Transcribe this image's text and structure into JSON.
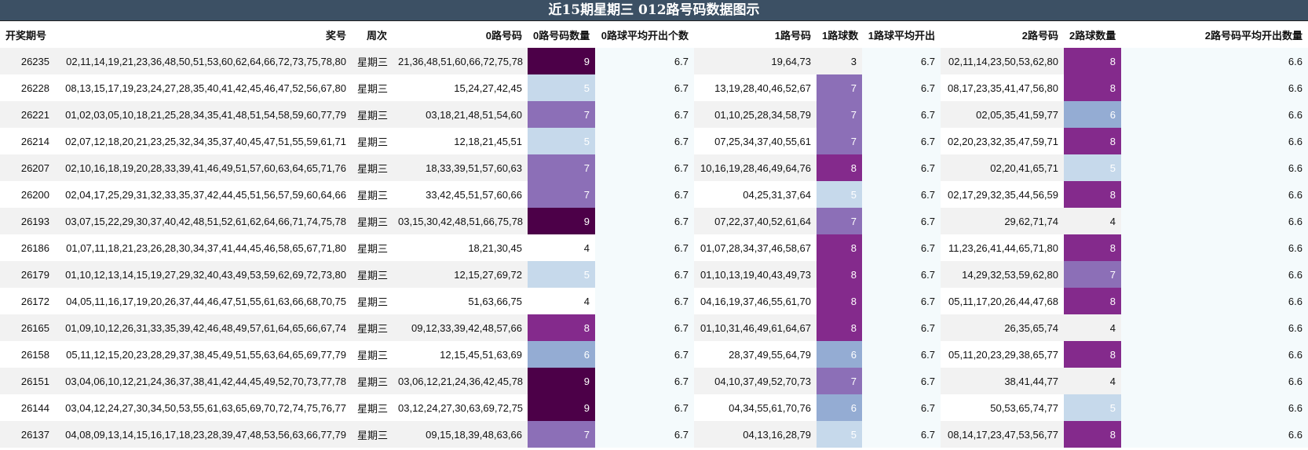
{
  "title": "近15期星期三 012路号码数据图示",
  "headers": [
    "开奖期号",
    "奖号",
    "周次",
    "0路号码",
    "0路号码数量",
    "0路球平均开出个数",
    "1路号码",
    "1路球数",
    "1路球平均开出",
    "2路号码",
    "2路球数量",
    "2路号码平均开出数量"
  ],
  "count_colors": {
    "3": "#ffffff",
    "4": "#ffffff",
    "5": "#c6d9eb",
    "6": "#94acd3",
    "7": "#8c6fb7",
    "8": "#842a8c",
    "9": "#4c0048"
  },
  "rows": [
    {
      "period": "26235",
      "numbers": "02,11,14,19,21,23,36,48,50,51,53,60,62,64,66,72,73,75,78,80",
      "week": "星期三",
      "r0": "21,36,48,51,60,66,72,75,78",
      "r0_count": "9",
      "r0_avg": "6.7",
      "r1": "19,64,73",
      "r1_count": "3",
      "r1_avg": "6.7",
      "r2": "02,11,14,23,50,53,62,80",
      "r2_count": "8",
      "r2_avg": "6.6"
    },
    {
      "period": "26228",
      "numbers": "08,13,15,17,19,23,24,27,28,35,40,41,42,45,46,47,52,56,67,80",
      "week": "星期三",
      "r0": "15,24,27,42,45",
      "r0_count": "5",
      "r0_avg": "6.7",
      "r1": "13,19,28,40,46,52,67",
      "r1_count": "7",
      "r1_avg": "6.7",
      "r2": "08,17,23,35,41,47,56,80",
      "r2_count": "8",
      "r2_avg": "6.6"
    },
    {
      "period": "26221",
      "numbers": "01,02,03,05,10,18,21,25,28,34,35,41,48,51,54,58,59,60,77,79",
      "week": "星期三",
      "r0": "03,18,21,48,51,54,60",
      "r0_count": "7",
      "r0_avg": "6.7",
      "r1": "01,10,25,28,34,58,79",
      "r1_count": "7",
      "r1_avg": "6.7",
      "r2": "02,05,35,41,59,77",
      "r2_count": "6",
      "r2_avg": "6.6"
    },
    {
      "period": "26214",
      "numbers": "02,07,12,18,20,21,23,25,32,34,35,37,40,45,47,51,55,59,61,71",
      "week": "星期三",
      "r0": "12,18,21,45,51",
      "r0_count": "5",
      "r0_avg": "6.7",
      "r1": "07,25,34,37,40,55,61",
      "r1_count": "7",
      "r1_avg": "6.7",
      "r2": "02,20,23,32,35,47,59,71",
      "r2_count": "8",
      "r2_avg": "6.6"
    },
    {
      "period": "26207",
      "numbers": "02,10,16,18,19,20,28,33,39,41,46,49,51,57,60,63,64,65,71,76",
      "week": "星期三",
      "r0": "18,33,39,51,57,60,63",
      "r0_count": "7",
      "r0_avg": "6.7",
      "r1": "10,16,19,28,46,49,64,76",
      "r1_count": "8",
      "r1_avg": "6.7",
      "r2": "02,20,41,65,71",
      "r2_count": "5",
      "r2_avg": "6.6"
    },
    {
      "period": "26200",
      "numbers": "02,04,17,25,29,31,32,33,35,37,42,44,45,51,56,57,59,60,64,66",
      "week": "星期三",
      "r0": "33,42,45,51,57,60,66",
      "r0_count": "7",
      "r0_avg": "6.7",
      "r1": "04,25,31,37,64",
      "r1_count": "5",
      "r1_avg": "6.7",
      "r2": "02,17,29,32,35,44,56,59",
      "r2_count": "8",
      "r2_avg": "6.6"
    },
    {
      "period": "26193",
      "numbers": "03,07,15,22,29,30,37,40,42,48,51,52,61,62,64,66,71,74,75,78",
      "week": "星期三",
      "r0": "03,15,30,42,48,51,66,75,78",
      "r0_count": "9",
      "r0_avg": "6.7",
      "r1": "07,22,37,40,52,61,64",
      "r1_count": "7",
      "r1_avg": "6.7",
      "r2": "29,62,71,74",
      "r2_count": "4",
      "r2_avg": "6.6"
    },
    {
      "period": "26186",
      "numbers": "01,07,11,18,21,23,26,28,30,34,37,41,44,45,46,58,65,67,71,80",
      "week": "星期三",
      "r0": "18,21,30,45",
      "r0_count": "4",
      "r0_avg": "6.7",
      "r1": "01,07,28,34,37,46,58,67",
      "r1_count": "8",
      "r1_avg": "6.7",
      "r2": "11,23,26,41,44,65,71,80",
      "r2_count": "8",
      "r2_avg": "6.6"
    },
    {
      "period": "26179",
      "numbers": "01,10,12,13,14,15,19,27,29,32,40,43,49,53,59,62,69,72,73,80",
      "week": "星期三",
      "r0": "12,15,27,69,72",
      "r0_count": "5",
      "r0_avg": "6.7",
      "r1": "01,10,13,19,40,43,49,73",
      "r1_count": "8",
      "r1_avg": "6.7",
      "r2": "14,29,32,53,59,62,80",
      "r2_count": "7",
      "r2_avg": "6.6"
    },
    {
      "period": "26172",
      "numbers": "04,05,11,16,17,19,20,26,37,44,46,47,51,55,61,63,66,68,70,75",
      "week": "星期三",
      "r0": "51,63,66,75",
      "r0_count": "4",
      "r0_avg": "6.7",
      "r1": "04,16,19,37,46,55,61,70",
      "r1_count": "8",
      "r1_avg": "6.7",
      "r2": "05,11,17,20,26,44,47,68",
      "r2_count": "8",
      "r2_avg": "6.6"
    },
    {
      "period": "26165",
      "numbers": "01,09,10,12,26,31,33,35,39,42,46,48,49,57,61,64,65,66,67,74",
      "week": "星期三",
      "r0": "09,12,33,39,42,48,57,66",
      "r0_count": "8",
      "r0_avg": "6.7",
      "r1": "01,10,31,46,49,61,64,67",
      "r1_count": "8",
      "r1_avg": "6.7",
      "r2": "26,35,65,74",
      "r2_count": "4",
      "r2_avg": "6.6"
    },
    {
      "period": "26158",
      "numbers": "05,11,12,15,20,23,28,29,37,38,45,49,51,55,63,64,65,69,77,79",
      "week": "星期三",
      "r0": "12,15,45,51,63,69",
      "r0_count": "6",
      "r0_avg": "6.7",
      "r1": "28,37,49,55,64,79",
      "r1_count": "6",
      "r1_avg": "6.7",
      "r2": "05,11,20,23,29,38,65,77",
      "r2_count": "8",
      "r2_avg": "6.6"
    },
    {
      "period": "26151",
      "numbers": "03,04,06,10,12,21,24,36,37,38,41,42,44,45,49,52,70,73,77,78",
      "week": "星期三",
      "r0": "03,06,12,21,24,36,42,45,78",
      "r0_count": "9",
      "r0_avg": "6.7",
      "r1": "04,10,37,49,52,70,73",
      "r1_count": "7",
      "r1_avg": "6.7",
      "r2": "38,41,44,77",
      "r2_count": "4",
      "r2_avg": "6.6"
    },
    {
      "period": "26144",
      "numbers": "03,04,12,24,27,30,34,50,53,55,61,63,65,69,70,72,74,75,76,77",
      "week": "星期三",
      "r0": "03,12,24,27,30,63,69,72,75",
      "r0_count": "9",
      "r0_avg": "6.7",
      "r1": "04,34,55,61,70,76",
      "r1_count": "6",
      "r1_avg": "6.7",
      "r2": "50,53,65,74,77",
      "r2_count": "5",
      "r2_avg": "6.6"
    },
    {
      "period": "26137",
      "numbers": "04,08,09,13,14,15,16,17,18,23,28,39,47,48,53,56,63,66,77,79",
      "week": "星期三",
      "r0": "09,15,18,39,48,63,66",
      "r0_count": "7",
      "r0_avg": "6.7",
      "r1": "04,13,16,28,79",
      "r1_count": "5",
      "r1_avg": "6.7",
      "r2": "08,14,17,23,47,53,56,77",
      "r2_count": "8",
      "r2_avg": "6.6"
    }
  ]
}
